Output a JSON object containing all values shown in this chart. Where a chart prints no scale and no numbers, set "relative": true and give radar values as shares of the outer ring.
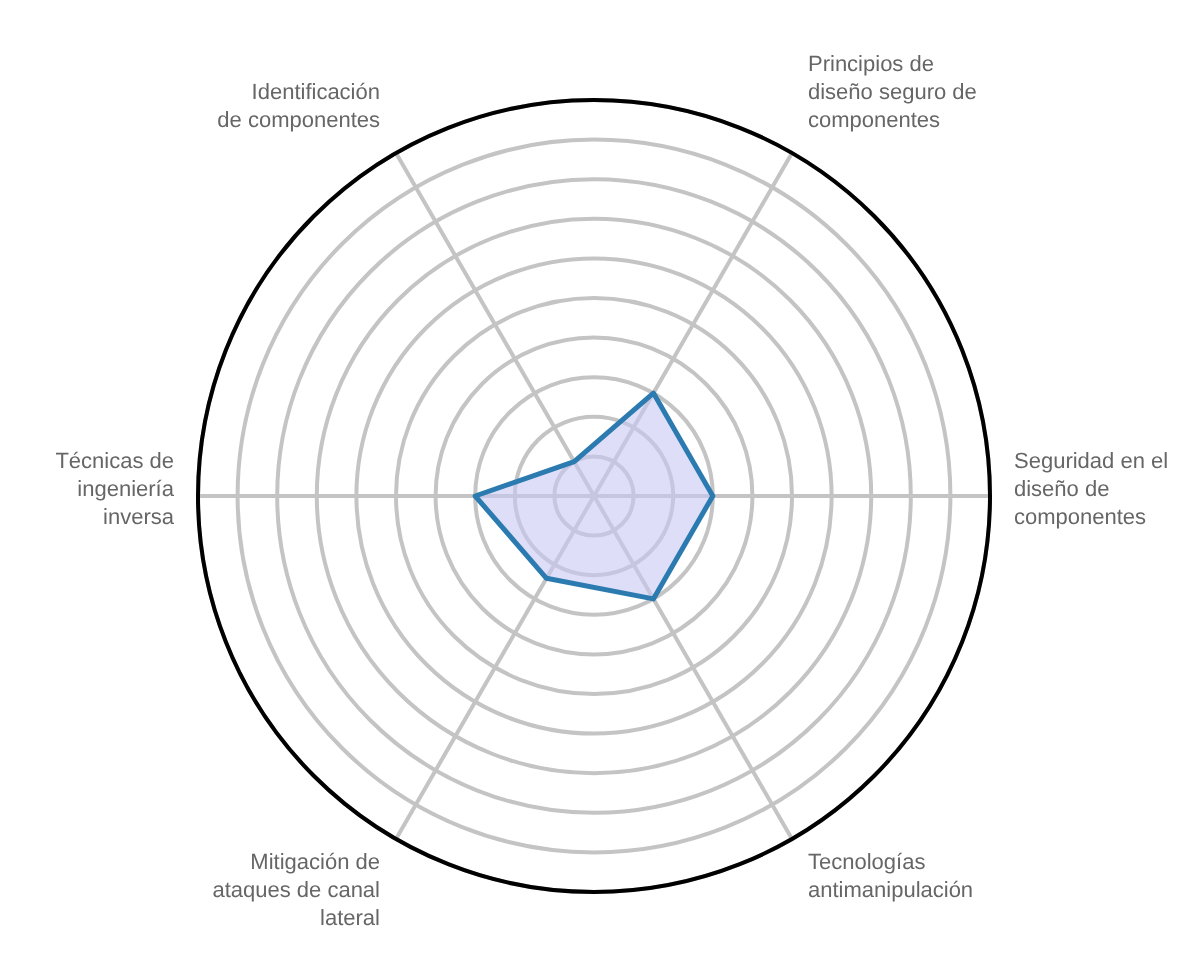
{
  "chart_data": {
    "type": "radar",
    "relative": true,
    "grid": true,
    "categories": [
      "Principios de diseño seguro de componentes",
      "Seguridad en el diseño de componentes",
      "Tecnologías antimanipulación",
      "Mitigación de ataques de canal lateral",
      "Técnicas de ingeniería inversa",
      "Identificación de componentes"
    ],
    "series": [
      {
        "color": "#2b7bb0",
        "values": [
          0.3,
          0.3,
          0.3,
          0.24,
          0.3,
          0.1
        ]
      }
    ]
  }
}
